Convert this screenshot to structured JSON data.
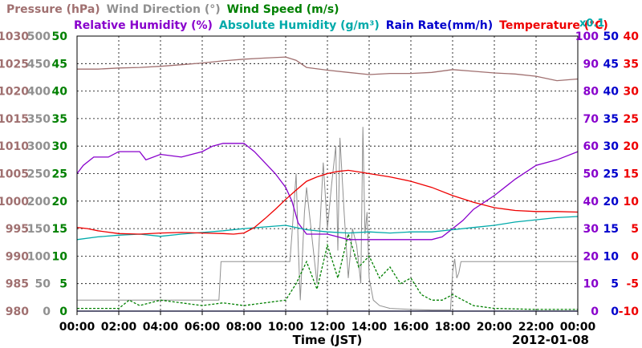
{
  "chart_data": {
    "type": "line",
    "date_label": "2012-01-08",
    "xlabel": "Time (JST)",
    "x_ticks": [
      "00:00",
      "02:00",
      "04:00",
      "06:00",
      "08:00",
      "10:00",
      "12:00",
      "14:00",
      "16:00",
      "18:00",
      "20:00",
      "22:00",
      "00:00"
    ],
    "x_range_hours": [
      0,
      24
    ],
    "grid": true,
    "legend_rows": [
      [
        {
          "label": "Pressure (hPa)",
          "color": "#a07070"
        },
        {
          "label": "Wind Direction (°)",
          "color": "#909090"
        },
        {
          "label": "Wind Speed (m/s)",
          "color": "#008000"
        }
      ],
      [
        {
          "label": "Relative Humidity (%)",
          "color": "#8800cc"
        },
        {
          "label": "Absolute Humidity (g/m³)",
          "color": "#00aaaa"
        },
        {
          "label": "Rain Rate(mm/h)",
          "color": "#0000cc"
        },
        {
          "label": "Temperature (°C)",
          "color": "#ee0000"
        }
      ]
    ],
    "scale_note": "x0.1",
    "axes": {
      "pressure": {
        "color": "#a07070",
        "ticks": [
          "1030",
          "1025",
          "1020",
          "1015",
          "1010",
          "1005",
          "1000",
          "995",
          "990",
          "985",
          "980"
        ],
        "range": [
          980,
          1030
        ]
      },
      "wind_direction": {
        "color": "#909090",
        "ticks": [
          "500",
          "450",
          "400",
          "350",
          "300",
          "250",
          "200",
          "150",
          "100",
          "50",
          "0"
        ],
        "range": [
          0,
          500
        ]
      },
      "wind_speed": {
        "color": "#008000",
        "ticks": [
          "50",
          "45",
          "40",
          "35",
          "30",
          "25",
          "20",
          "15",
          "10",
          "5",
          "0"
        ],
        "range": [
          0,
          50
        ]
      },
      "relative_humidity": {
        "color": "#8800cc",
        "ticks": [
          "100",
          "90",
          "80",
          "70",
          "60",
          "50",
          "40",
          "30",
          "20",
          "10",
          "0"
        ],
        "range": [
          0,
          100
        ]
      },
      "rain_rate": {
        "color": "#0000cc",
        "ticks": [
          "50",
          "45",
          "40",
          "35",
          "30",
          "25",
          "20",
          "15",
          "10",
          "5",
          "0"
        ],
        "range": [
          0,
          50
        ]
      },
      "temperature": {
        "color": "#ee0000",
        "ticks": [
          "40",
          "35",
          "30",
          "25",
          "20",
          "15",
          "10",
          "5",
          "0",
          "-5",
          "-10"
        ],
        "range": [
          -10,
          40
        ]
      }
    },
    "series": [
      {
        "key": "pressure",
        "color": "#a07070",
        "x": [
          0,
          1,
          2,
          3,
          4,
          5,
          6,
          7,
          8,
          9,
          10,
          10.5,
          11,
          12,
          13,
          14,
          15,
          16,
          17,
          18,
          19,
          20,
          21,
          22,
          23,
          24
        ],
        "y": [
          1024,
          1024,
          1024.2,
          1024.3,
          1024.5,
          1024.8,
          1025.1,
          1025.5,
          1025.8,
          1026,
          1026.2,
          1025.6,
          1024.3,
          1023.8,
          1023.4,
          1023,
          1023.2,
          1023.2,
          1023.4,
          1023.9,
          1023.6,
          1023.3,
          1023.1,
          1022.7,
          1021.9,
          1022.2
        ]
      },
      {
        "key": "wind_direction",
        "color": "#909090",
        "x": [
          0,
          6.8,
          6.9,
          10.2,
          10.3,
          10.5,
          10.6,
          10.7,
          10.9,
          11,
          11.3,
          11.5,
          11.8,
          12,
          12.2,
          12.4,
          12.5,
          12.6,
          12.8,
          13,
          13.2,
          13.4,
          13.6,
          13.7,
          13.8,
          13.9,
          14,
          14.2,
          14.5,
          15,
          16,
          17,
          17.9,
          18,
          18.1,
          18.2,
          18.3,
          18.4,
          24
        ],
        "y": [
          20,
          20,
          90,
          90,
          140,
          250,
          120,
          20,
          180,
          225,
          120,
          50,
          270,
          150,
          230,
          300,
          110,
          315,
          180,
          60,
          150,
          120,
          50,
          335,
          140,
          180,
          60,
          20,
          10,
          5,
          3,
          2,
          2,
          70,
          95,
          60,
          70,
          90,
          90
        ]
      },
      {
        "key": "wind_speed",
        "color": "#008000",
        "x": [
          0,
          2,
          2.5,
          3,
          4,
          5,
          6,
          7,
          8,
          9,
          10,
          10.5,
          11,
          11.5,
          12,
          12.5,
          13,
          13.5,
          14,
          14.5,
          15,
          15.5,
          16,
          16.5,
          17,
          17.5,
          18,
          18.5,
          19,
          20,
          22,
          24
        ],
        "y": [
          0.5,
          0.5,
          2,
          1,
          2,
          1.5,
          1,
          1.5,
          1,
          1.5,
          2,
          5,
          9,
          4,
          12,
          6,
          14,
          8,
          10,
          6,
          8,
          5,
          6,
          3,
          2,
          2,
          3,
          2,
          1,
          0.5,
          0.3,
          0.3
        ]
      },
      {
        "key": "relative_humidity",
        "color": "#8800cc",
        "x": [
          0,
          0.3,
          0.8,
          1.5,
          2,
          3,
          3.3,
          4,
          5,
          6,
          6.5,
          7,
          7.5,
          8,
          8.5,
          9,
          9.5,
          10,
          10.3,
          10.6,
          11,
          11.5,
          12,
          12.5,
          13,
          13.5,
          14,
          15,
          16,
          17,
          17.5,
          18,
          18.5,
          19,
          20,
          21,
          22,
          23,
          24
        ],
        "y": [
          50,
          53,
          56,
          56,
          58,
          58,
          55,
          57,
          56,
          58,
          60,
          61,
          61,
          61,
          58,
          54,
          50,
          45,
          40,
          32,
          28,
          28,
          28,
          27,
          26,
          26,
          26,
          26,
          26,
          26,
          27,
          30,
          33,
          37,
          42,
          48,
          53,
          55,
          58
        ]
      },
      {
        "key": "absolute_humidity",
        "scale_axis": "pressure",
        "color": "#00aaaa",
        "x": [
          0,
          1,
          2,
          3,
          4,
          5,
          6,
          7,
          8,
          9,
          10,
          11,
          12,
          13,
          14,
          15,
          16,
          17,
          18,
          19,
          20,
          21,
          22,
          23,
          24
        ],
        "y": [
          993,
          993.5,
          993.8,
          994,
          993.6,
          994,
          994.3,
          994.6,
          995,
          995.3,
          995.6,
          994.8,
          994.4,
          994.2,
          994.4,
          994.2,
          994.4,
          994.4,
          994.8,
          995.2,
          995.6,
          996.2,
          996.6,
          997,
          997.2
        ]
      },
      {
        "key": "rain_rate",
        "color": "#0000cc",
        "x": [
          0,
          24
        ],
        "y": [
          0,
          0
        ]
      },
      {
        "key": "temperature",
        "color": "#ee0000",
        "x": [
          0,
          0.5,
          1,
          2,
          3,
          4,
          5,
          6,
          7,
          7.5,
          8,
          8.5,
          9,
          9.5,
          10,
          10.5,
          11,
          11.5,
          12,
          12.5,
          13,
          13.5,
          14,
          15,
          16,
          17,
          18,
          19,
          20,
          21,
          22,
          23,
          24
        ],
        "y": [
          5.2,
          5,
          4.6,
          4.1,
          4,
          4.2,
          4.3,
          4.2,
          4.1,
          4,
          4.2,
          5.2,
          6.8,
          8.5,
          10.3,
          12,
          13.6,
          14.4,
          15,
          15.4,
          15.6,
          15.3,
          15,
          14.4,
          13.6,
          12.5,
          11,
          9.8,
          8.8,
          8.3,
          8.1,
          8.1,
          8
        ]
      }
    ]
  }
}
